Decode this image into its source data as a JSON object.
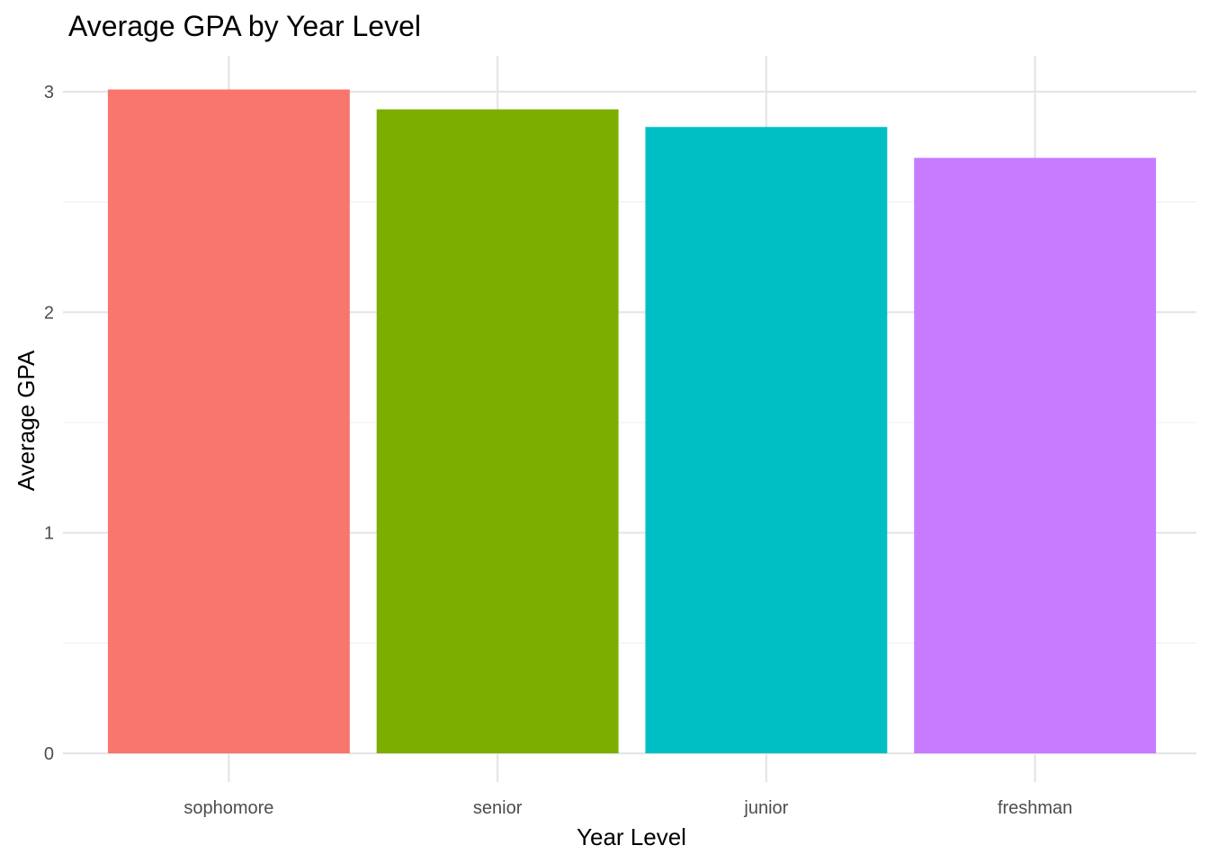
{
  "chart_data": {
    "type": "bar",
    "title": "Average GPA by Year Level",
    "xlabel": "Year Level",
    "ylabel": "Average GPA",
    "categories": [
      "sophomore",
      "senior",
      "junior",
      "freshman"
    ],
    "values": [
      3.01,
      2.92,
      2.84,
      2.7
    ],
    "colors": [
      "#F8766D",
      "#7CAE00",
      "#00BFC4",
      "#C77CFF"
    ],
    "ylim": [
      0,
      3.15
    ],
    "yticks": [
      0,
      1,
      2,
      3
    ],
    "yticks_minor": [
      0.5,
      1.5,
      2.5
    ],
    "grid": true,
    "legend": "none"
  }
}
